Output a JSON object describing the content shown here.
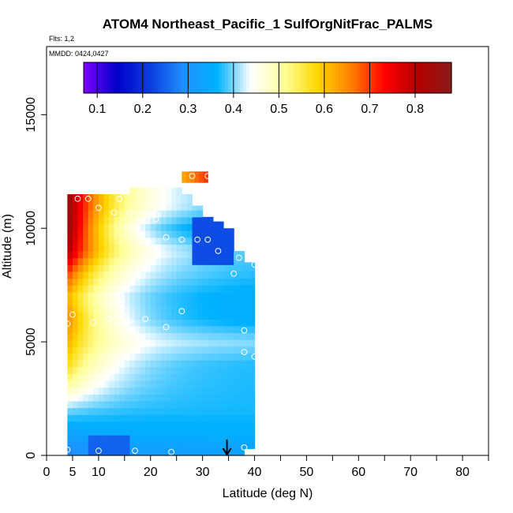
{
  "chart_data": {
    "type": "heatmap",
    "title": "ATOM4 Northeast_Pacific_1 SulfOrgNitFrac_PALMS",
    "flights_note": "Flts: 1,2",
    "date_note": "MMDD: 0424,0427",
    "xlabel": "Latitude (deg N)",
    "ylabel": "Altitude (m)",
    "xlim": [
      0,
      85
    ],
    "ylim": [
      0,
      18000
    ],
    "x_ticks": [
      0,
      5,
      10,
      20,
      30,
      40,
      50,
      60,
      70,
      80
    ],
    "y_ticks": [
      0,
      5000,
      10000,
      15000
    ],
    "colorbar": {
      "min": 0.07,
      "max": 0.88,
      "ticks": [
        "0.1",
        "0.2",
        "0.3",
        "0.4",
        "0.5",
        "0.6",
        "0.7",
        "0.8"
      ],
      "colors": [
        "#7f00ff",
        "#0000c8",
        "#0a3fe0",
        "#1f90ff",
        "#00b2ff",
        "#ffffff",
        "#ffff99",
        "#ffd700",
        "#ff7f00",
        "#ff0000",
        "#b30000",
        "#8b1a1a"
      ]
    },
    "curtain": {
      "lat_edges": [
        4,
        6,
        8,
        10,
        12,
        14,
        16,
        18,
        20,
        22,
        24,
        26,
        28,
        30,
        32,
        34,
        36,
        38,
        40
      ],
      "top_altitudes": [
        11500,
        11500,
        11500,
        11500,
        11500,
        11500,
        11800,
        11800,
        11800,
        11800,
        11800,
        11500,
        11000,
        10500,
        10300,
        10000,
        9000,
        8500
      ],
      "bottom_altitudes": [
        0,
        0,
        0,
        0,
        0,
        0,
        0,
        0,
        0,
        0,
        0,
        0,
        0,
        0,
        0,
        0,
        0,
        300
      ],
      "upper_band": {
        "lat_range": [
          26,
          31
        ],
        "alt_range": [
          12000,
          12500
        ],
        "values": [
          0.63,
          0.7
        ]
      },
      "profile_by_altitude": [
        {
          "alt": 0,
          "w": 0.28,
          "s": 0.32
        },
        {
          "alt": 1000,
          "w": 0.33,
          "s": 0.36
        },
        {
          "alt": 2000,
          "w": 0.4,
          "s": 0.37
        },
        {
          "alt": 3000,
          "w": 0.5,
          "s": 0.37
        },
        {
          "alt": 4000,
          "w": 0.58,
          "s": 0.37
        },
        {
          "alt": 5000,
          "w": 0.62,
          "s": 0.4
        },
        {
          "alt": 6000,
          "w": 0.66,
          "s": 0.35
        },
        {
          "alt": 7000,
          "w": 0.62,
          "s": 0.35
        },
        {
          "alt": 8000,
          "w": 0.7,
          "s": 0.37
        },
        {
          "alt": 9000,
          "w": 0.82,
          "s": 0.38
        },
        {
          "alt": 10000,
          "w": 0.86,
          "s": 0.32
        },
        {
          "alt": 11000,
          "w": 0.86,
          "s": 0.38
        }
      ],
      "wet_decay_deg": 9,
      "low_patch": {
        "lat": [
          28,
          36
        ],
        "alt": [
          8500,
          10500
        ],
        "value": 0.23
      },
      "bottom_patch": {
        "lat": [
          8,
          16
        ],
        "alt": [
          0,
          800
        ],
        "value": 0.25
      }
    },
    "observations": [
      {
        "lat": 4,
        "alt": 250
      },
      {
        "lat": 10,
        "alt": 200
      },
      {
        "lat": 17,
        "alt": 200
      },
      {
        "lat": 24,
        "alt": 150
      },
      {
        "lat": 38,
        "alt": 350
      },
      {
        "lat": 4,
        "alt": 5800
      },
      {
        "lat": 5,
        "alt": 6200
      },
      {
        "lat": 9,
        "alt": 5850
      },
      {
        "lat": 12,
        "alt": 6000
      },
      {
        "lat": 16,
        "alt": 5900
      },
      {
        "lat": 19,
        "alt": 6000
      },
      {
        "lat": 23,
        "alt": 5650
      },
      {
        "lat": 26,
        "alt": 6350
      },
      {
        "lat": 38,
        "alt": 5500
      },
      {
        "lat": 38,
        "alt": 4550
      },
      {
        "lat": 40,
        "alt": 4350
      },
      {
        "lat": 36,
        "alt": 8000
      },
      {
        "lat": 37,
        "alt": 8700
      },
      {
        "lat": 40,
        "alt": 8400
      },
      {
        "lat": 33,
        "alt": 9000
      },
      {
        "lat": 23,
        "alt": 9600
      },
      {
        "lat": 26,
        "alt": 9500
      },
      {
        "lat": 29,
        "alt": 9500
      },
      {
        "lat": 31,
        "alt": 9500
      },
      {
        "lat": 6,
        "alt": 11300
      },
      {
        "lat": 8,
        "alt": 11300
      },
      {
        "lat": 10,
        "alt": 10900
      },
      {
        "lat": 13,
        "alt": 10700
      },
      {
        "lat": 14,
        "alt": 11300
      },
      {
        "lat": 16,
        "alt": 10700
      },
      {
        "lat": 21,
        "alt": 10400
      },
      {
        "lat": 21,
        "alt": 10600
      },
      {
        "lat": 28,
        "alt": 12300
      },
      {
        "lat": 31,
        "alt": 12300
      }
    ],
    "arrow_marker": {
      "lat": 34.7,
      "alt_top": 700,
      "alt_bottom": 0
    },
    "grid": false
  }
}
